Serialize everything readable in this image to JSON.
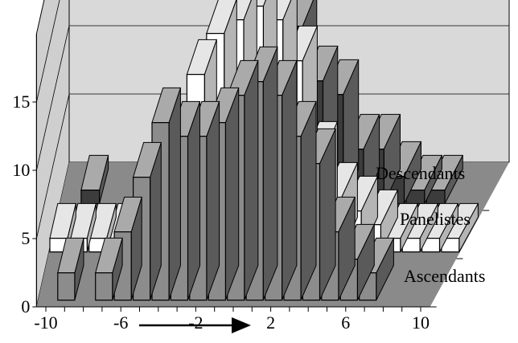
{
  "chart_data": {
    "type": "bar",
    "variant": "3d-series-depth",
    "title": "",
    "xlabel": "",
    "ylabel": "",
    "x": [
      -10,
      -9,
      -8,
      -7,
      -6,
      -5,
      -4,
      -3,
      -2,
      -1,
      0,
      1,
      2,
      3,
      4,
      5,
      6,
      7,
      8,
      9,
      10
    ],
    "x_tick_labels": [
      "-10",
      "-6",
      "-2",
      "2",
      "6",
      "10"
    ],
    "x_tick_values": [
      -10,
      -6,
      -2,
      2,
      6,
      10
    ],
    "y_tick_labels": [
      "0",
      "5",
      "10",
      "15"
    ],
    "y_tick_values": [
      0,
      5,
      10,
      15
    ],
    "ylim": [
      0,
      20
    ],
    "grid": true,
    "series": [
      {
        "name": "Ascendants",
        "color": "#8c8c8c",
        "values": [
          0,
          2,
          0,
          2,
          5,
          9,
          13,
          12,
          12,
          13,
          15,
          16,
          15,
          12,
          10,
          5,
          3,
          2,
          0,
          0,
          0
        ]
      },
      {
        "name": "Panelistes",
        "color": "#ffffff",
        "values": [
          1,
          1,
          1,
          1,
          2,
          4,
          8,
          13,
          16,
          17,
          18,
          17,
          14,
          7,
          4,
          3,
          2,
          1,
          1,
          1,
          1
        ]
      },
      {
        "name": "Descendants",
        "color": "#3c3c3c",
        "values": [
          0,
          1,
          0,
          0,
          1,
          2,
          4,
          4,
          11,
          14,
          15,
          13,
          9,
          8,
          4,
          4,
          2,
          1,
          1,
          0,
          0
        ]
      }
    ],
    "annotation": "arrow",
    "colors": {
      "floor": "#8a8a8a",
      "back_wall": "#d9d9d9",
      "side_wall": "#cfcfcf"
    }
  }
}
